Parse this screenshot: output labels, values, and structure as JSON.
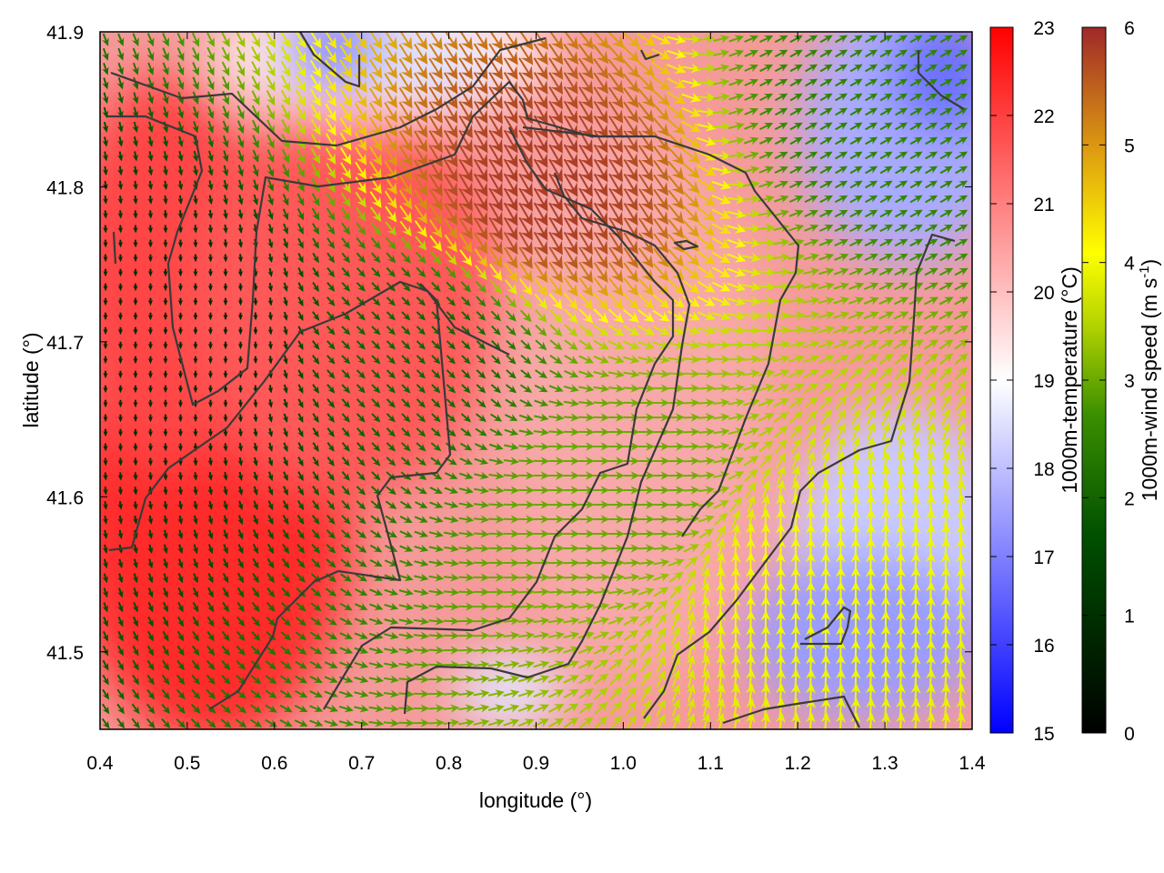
{
  "chart_data": {
    "type": "heatmap",
    "xlabel": "longitude (°)",
    "ylabel": "latitude (°)",
    "xlim": [
      0.4,
      1.4
    ],
    "ylim": [
      41.45,
      41.9
    ],
    "x_ticks": [
      "0.4",
      "0.5",
      "0.6",
      "0.7",
      "0.8",
      "0.9",
      "1.0",
      "1.1",
      "1.2",
      "1.3",
      "1.4"
    ],
    "y_ticks": [
      "41.5",
      "41.6",
      "41.7",
      "41.8",
      "41.9"
    ],
    "temperature_colorbar": {
      "label": "1000m-temperature (°C)",
      "range": [
        15,
        23
      ],
      "ticks": [
        "15",
        "16",
        "17",
        "18",
        "19",
        "20",
        "21",
        "22",
        "23"
      ],
      "colors": [
        "#0000ff",
        "#ffffff",
        "#ff0000"
      ]
    },
    "windspeed_colorbar": {
      "label_main": "1000m-wind speed (m s",
      "label_sup": "-1",
      "label_end": ")",
      "range": [
        0,
        6
      ],
      "ticks": [
        "0",
        "1",
        "2",
        "3",
        "4",
        "5",
        "6"
      ],
      "colors": [
        "#000000",
        "#005000",
        "#2e8b00",
        "#9acd00",
        "#ffff00",
        "#e8a000",
        "#a0282a"
      ]
    },
    "temperature_field": {
      "description_points": [
        {
          "lon": 0.45,
          "lat": 41.5,
          "value": 22.8
        },
        {
          "lon": 0.5,
          "lat": 41.8,
          "value": 22.0
        },
        {
          "lon": 0.7,
          "lat": 41.7,
          "value": 21.5
        },
        {
          "lon": 0.9,
          "lat": 41.6,
          "value": 20.5
        },
        {
          "lon": 1.0,
          "lat": 41.8,
          "value": 20.5
        },
        {
          "lon": 0.7,
          "lat": 41.89,
          "value": 16.5
        },
        {
          "lon": 1.3,
          "lat": 41.85,
          "value": 17.0
        },
        {
          "lon": 1.3,
          "lat": 41.55,
          "value": 17.0
        },
        {
          "lon": 1.25,
          "lat": 41.5,
          "value": 16.5
        },
        {
          "lon": 1.15,
          "lat": 41.65,
          "value": 19.0
        },
        {
          "lon": 0.95,
          "lat": 41.48,
          "value": 19.5
        }
      ]
    },
    "wind_field": {
      "description_points": [
        {
          "lon": 0.5,
          "lat": 41.7,
          "speed": 0.8,
          "direction_deg": 270
        },
        {
          "lon": 0.75,
          "lat": 41.7,
          "speed": 2.0,
          "direction_deg": 315
        },
        {
          "lon": 0.9,
          "lat": 41.8,
          "speed": 5.8,
          "direction_deg": 300
        },
        {
          "lon": 1.0,
          "lat": 41.6,
          "speed": 3.0,
          "direction_deg": 0
        },
        {
          "lon": 1.2,
          "lat": 41.55,
          "speed": 4.0,
          "direction_deg": 90
        },
        {
          "lon": 1.3,
          "lat": 41.85,
          "speed": 2.5,
          "direction_deg": 30
        }
      ]
    }
  }
}
